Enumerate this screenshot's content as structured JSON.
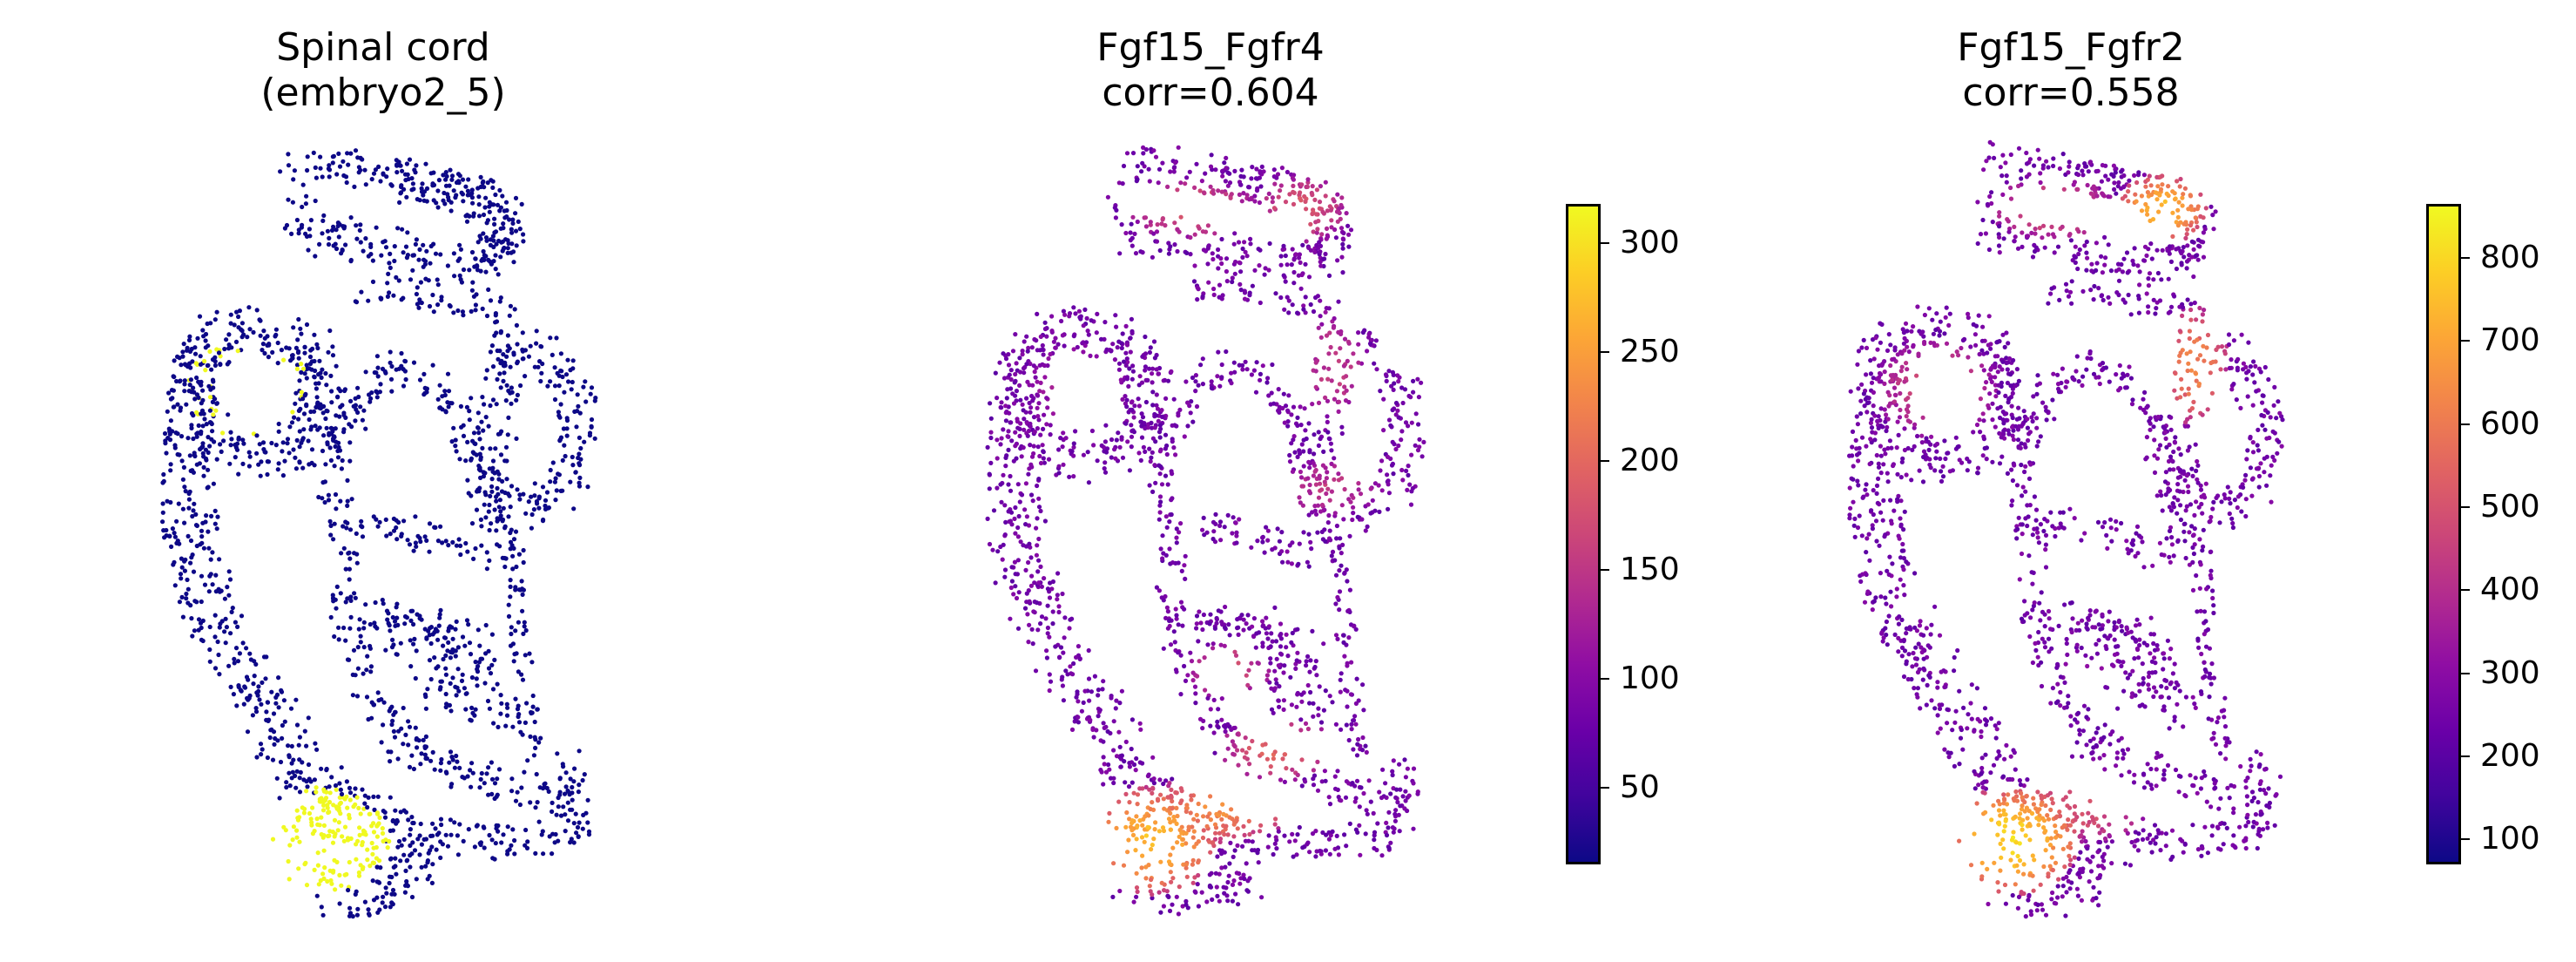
{
  "colors": {
    "low": "#0d0887",
    "highlight": "#f0f921",
    "colormap": "plasma"
  },
  "chart_data": [
    {
      "type": "scatter",
      "title": "Spinal cord",
      "subtitle": "(embryo2_5)",
      "colorbar": null
    },
    {
      "type": "scatter",
      "title": "Fgf15_Fgfr4",
      "subtitle": "corr=0.604",
      "colorbar": {
        "range": [
          15,
          318
        ],
        "ticks": [
          50,
          100,
          150,
          200,
          250,
          300
        ]
      }
    },
    {
      "type": "scatter",
      "title": "Fgf15_Fgfr2",
      "subtitle": "corr=0.558",
      "colorbar": {
        "range": [
          70,
          865
        ],
        "ticks": [
          100,
          200,
          300,
          400,
          500,
          600,
          700,
          800
        ]
      }
    }
  ]
}
